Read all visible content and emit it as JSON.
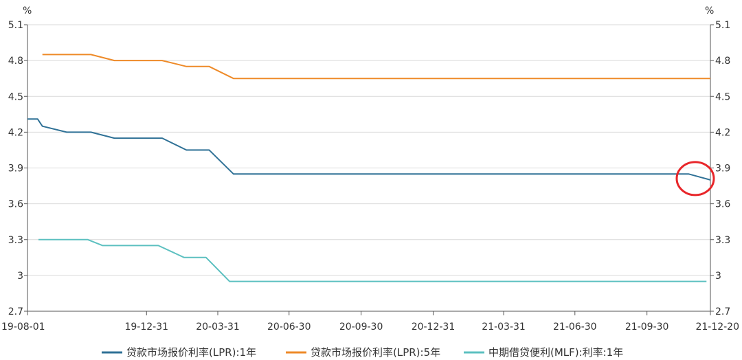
{
  "chart_data": {
    "type": "line",
    "title": "",
    "unit_left": "%",
    "unit_right": "%",
    "ylim": [
      2.7,
      5.1
    ],
    "y_ticks": [
      5.1,
      4.8,
      4.5,
      4.2,
      3.9,
      3.6,
      3.3,
      3,
      2.7
    ],
    "y_tick_labels": [
      "5.1",
      "4.8",
      "4.5",
      "4.2",
      "3.9",
      "3.6",
      "3.3",
      "3",
      "2.7"
    ],
    "xlim": [
      "2019-08-01",
      "2021-12-20"
    ],
    "x_ticks": [
      "2019-08-01",
      "2019-12-31",
      "2020-03-31",
      "2020-06-30",
      "2020-09-30",
      "2020-12-31",
      "2021-03-31",
      "2021-06-30",
      "2021-09-30",
      "2021-12-20"
    ],
    "x_tick_labels": [
      "19-08-01",
      "19-12-31",
      "20-03-31",
      "20-06-30",
      "20-09-30",
      "20-12-31",
      "21-03-31",
      "21-06-30",
      "21-09-30",
      "21-12-20"
    ],
    "grid": true,
    "legend_position": "bottom",
    "highlight_annotation": {
      "shape": "circle",
      "color": "#e8262a",
      "x": "2021-12-20",
      "y": 3.8
    },
    "series": [
      {
        "name": "贷款市场报价利率(LPR):1年",
        "color": "#2f7196",
        "points": [
          {
            "x": "2019-08-01",
            "y": 4.31
          },
          {
            "x": "2019-08-14",
            "y": 4.31
          },
          {
            "x": "2019-08-20",
            "y": 4.25
          },
          {
            "x": "2019-09-20",
            "y": 4.2
          },
          {
            "x": "2019-10-21",
            "y": 4.2
          },
          {
            "x": "2019-11-20",
            "y": 4.15
          },
          {
            "x": "2020-01-20",
            "y": 4.15
          },
          {
            "x": "2020-02-20",
            "y": 4.05
          },
          {
            "x": "2020-03-20",
            "y": 4.05
          },
          {
            "x": "2020-04-20",
            "y": 3.85
          },
          {
            "x": "2021-11-22",
            "y": 3.85
          },
          {
            "x": "2021-12-20",
            "y": 3.8
          }
        ]
      },
      {
        "name": "贷款市场报价利率(LPR):5年",
        "color": "#ee8a28",
        "points": [
          {
            "x": "2019-08-20",
            "y": 4.85
          },
          {
            "x": "2019-10-21",
            "y": 4.85
          },
          {
            "x": "2019-11-20",
            "y": 4.8
          },
          {
            "x": "2020-01-20",
            "y": 4.8
          },
          {
            "x": "2020-02-20",
            "y": 4.75
          },
          {
            "x": "2020-03-20",
            "y": 4.75
          },
          {
            "x": "2020-04-20",
            "y": 4.65
          },
          {
            "x": "2021-12-20",
            "y": 4.65
          }
        ]
      },
      {
        "name": "中期借贷便利(MLF):利率:1年",
        "color": "#5cc0c0",
        "points": [
          {
            "x": "2019-08-15",
            "y": 3.3
          },
          {
            "x": "2019-10-17",
            "y": 3.3
          },
          {
            "x": "2019-11-05",
            "y": 3.25
          },
          {
            "x": "2020-01-15",
            "y": 3.25
          },
          {
            "x": "2020-02-17",
            "y": 3.15
          },
          {
            "x": "2020-03-16",
            "y": 3.15
          },
          {
            "x": "2020-04-15",
            "y": 2.95
          },
          {
            "x": "2021-12-15",
            "y": 2.95
          }
        ]
      }
    ]
  }
}
